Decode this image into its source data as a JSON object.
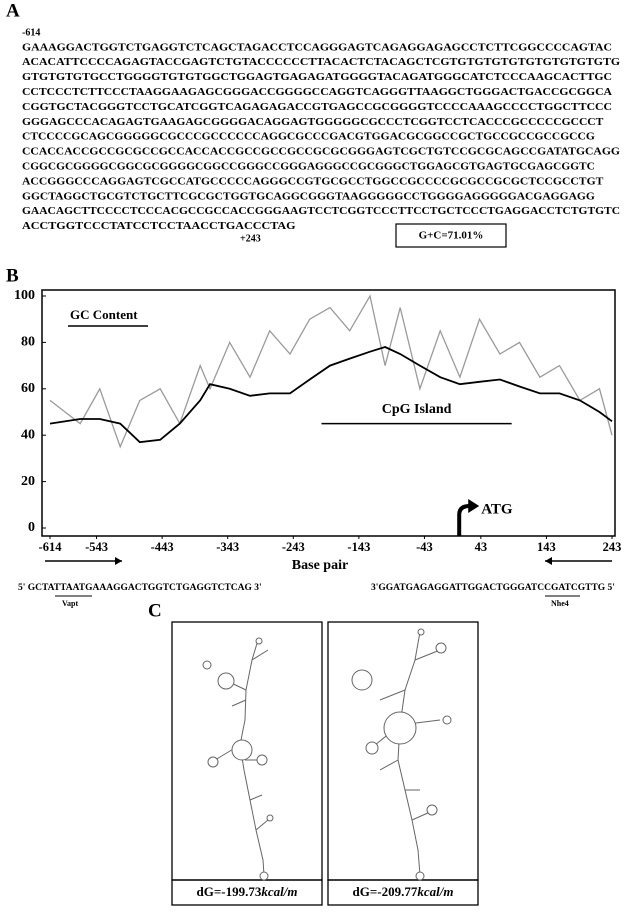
{
  "panel_a": {
    "label": "A",
    "start": "-614",
    "sequence": [
      "GAAAGGACTGGTCTGAGGTCTCAGCTAGACCTCCAGGGAGTCAGAGGAGAGCCTCTTCGGCCCCAGTAC",
      "ACACATTCCCCAGAGTACCGAGTCTGTACCCCCCTTACACTCTACAGCTCGTGTGTGTGTGTGTGTGTGTG",
      "GTGTGTGTGCCTGGGGTGTGTGGCTGGAGTGAGAGATGGGGTACAGATGGGCATCTCCCAAGCACTTGC",
      "CCTCCCTCTTCCCTAAGGAAGAGCGGGACCGGGGCCAGGTCAGGGTTAAGGCTGGGACTGACCGCGGCA",
      "CGGTGCTACGGGTCCTGCATCGGTCAGAGAGACCGTGAGCCGCGGGGTCCCCAAAGCCCCTGGCTTCCC",
      "GGGAGCCCACAGAGTGAAGAGCGGGGACAGGAGTGGGGGCGCCCTCGGTCCTCACCCGCCCCCGCCCT",
      "CTCCCCGCAGCGGGGGCGCCCGCCCCCCAGGCGCCCGACGTGGACGCGGCCGCTGCCGCCGCCGCCG",
      "CCACCACCGCCGCGCCGCCACCACCGCCGCCGCCGCGCGGGAGTCGCTGTCCGCGCAGCCGATATGCAGG",
      "CGGCGCGGGGCGGCGCGGGGCGGCCGGGCCGGGAGGGCCGCGGGCTGGAGCGTGAGTGCGAGCGGTC",
      "ACCGGGCCCAGGAGTCGCCATGCCCCCAGGGCCGTGCGCCTGGCCGCCCCGCGCCGCGCTCCGCCTGT",
      "GGCTAGGCTGCGTCTGCTTCGCGCTGGTGCAGGCGGGTAAGGGGGCCTGGGGAGGGGGACGAGGAGG",
      "GAACAGCTTCCCCTCCCACGCCGCCACCGGGAAGTCCTCGGTCCCTTCCTGCTCCCTGAGGACCTCTGTGTC",
      "ACCTGGTCCCTATCCTCCTAACCTGACCCTAG"
    ],
    "end": "+243",
    "gc": "G+C=71.01%"
  },
  "panel_b_label": "B",
  "chart_data": {
    "type": "line",
    "x": [
      -614,
      -568,
      -538,
      -507,
      -477,
      -446,
      -416,
      -385,
      -370,
      -340,
      -309,
      -279,
      -248,
      -218,
      -187,
      -157,
      -126,
      -103,
      -80,
      -50,
      -19,
      11,
      41,
      72,
      102,
      133,
      163,
      194,
      224,
      243
    ],
    "series": [
      {
        "color": "#9a9a9a",
        "values": [
          55,
          45,
          60,
          35,
          55,
          60,
          45,
          70,
          60,
          80,
          65,
          85,
          75,
          90,
          95,
          85,
          100,
          70,
          95,
          60,
          85,
          65,
          90,
          75,
          80,
          65,
          70,
          55,
          60,
          40
        ]
      },
      {
        "name": "GC Content",
        "color": "#000000",
        "values": [
          45,
          47,
          47,
          45,
          37,
          38,
          45,
          55,
          62,
          60,
          57,
          58,
          58,
          64,
          70,
          73,
          76,
          78,
          75,
          70,
          65,
          62,
          63,
          64,
          61,
          58,
          58,
          55,
          50,
          46
        ]
      }
    ],
    "xlim": [
      -614,
      243
    ],
    "xticks": [
      -614,
      -543,
      -443,
      -343,
      -243,
      -143,
      -43,
      43,
      143,
      243
    ],
    "ylim": [
      0,
      100
    ],
    "yticks": [
      0,
      20,
      40,
      60,
      80,
      100
    ],
    "xlabel": "Base pair",
    "legend": "upper left",
    "cpg": {
      "text": "CpG Island",
      "x": [
        -200,
        90
      ],
      "y": 45
    },
    "atg": {
      "text": "ATG",
      "x": 10
    }
  },
  "primers": {
    "forward": {
      "seq": "5' GCTATTAATGAAAGGACTGGTCTGAGGTCTCAG 3'",
      "site": "Vapt"
    },
    "reverse": {
      "seq": "3'GGATGAGAGGATTGGACTGGGATCCGATCGTTG 5'",
      "site": "Nhe4"
    }
  },
  "panel_c": {
    "label": "C",
    "structures": [
      {
        "dG": "dG=-199.73",
        "unit": "kcal/m"
      },
      {
        "dG": "dG=-209.77",
        "unit": "kcal/m"
      }
    ]
  }
}
